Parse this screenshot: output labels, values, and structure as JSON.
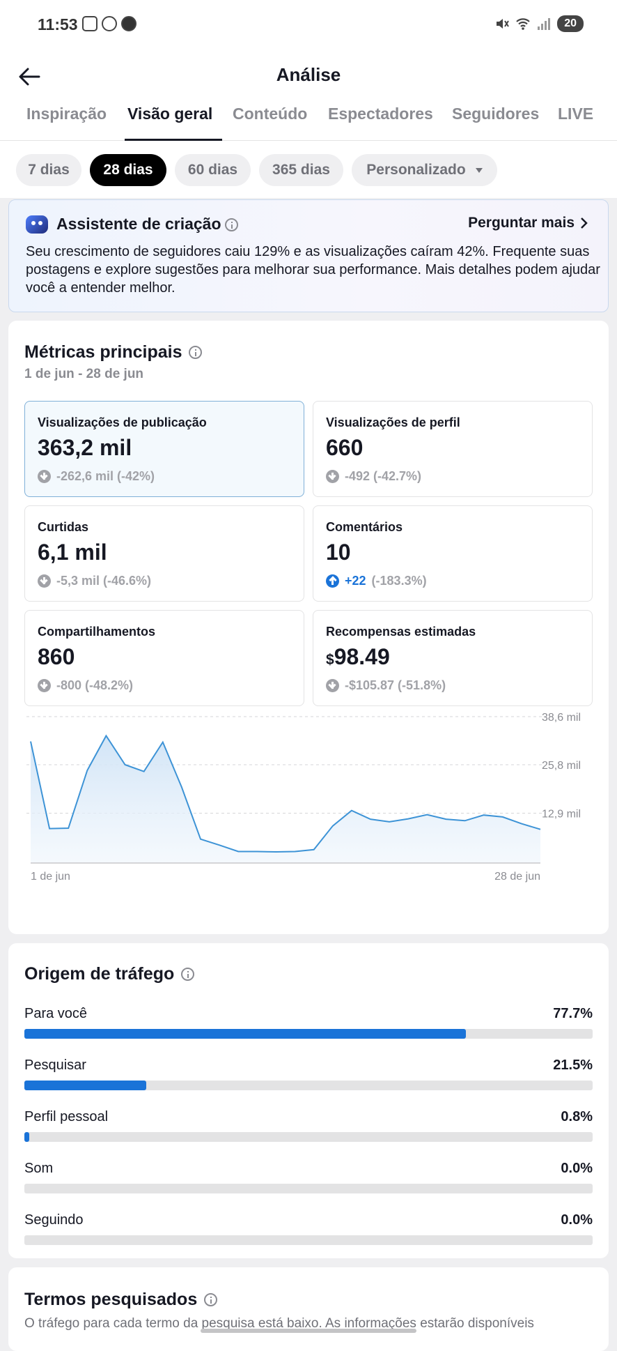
{
  "status_bar": {
    "time": "11:53",
    "battery": "20"
  },
  "header": {
    "title": "Análise"
  },
  "tabs": [
    {
      "label": "Inspiração"
    },
    {
      "label": "Visão geral"
    },
    {
      "label": "Conteúdo"
    },
    {
      "label": "Espectadores"
    },
    {
      "label": "Seguidores"
    },
    {
      "label": "LIVE"
    }
  ],
  "active_tab": "Visão geral",
  "ranges": [
    {
      "label": "7 dias"
    },
    {
      "label": "28 dias"
    },
    {
      "label": "60 dias"
    },
    {
      "label": "365 dias"
    },
    {
      "label": "Personalizado"
    }
  ],
  "active_range": "28 dias",
  "assistant": {
    "title": "Assistente de criação",
    "ask_label": "Perguntar mais",
    "text": "Seu crescimento de seguidores caiu 129% e as visualizações caíram 42%. Frequente suas postagens e explore sugestões para melhorar sua performance. Mais detalhes podem ajudar você a entender melhor."
  },
  "metrics": {
    "title": "Métricas principais",
    "date_range": "1 de jun - 28 de jun",
    "items": [
      {
        "label": "Visualizações de publicação",
        "value": "363,2 mil",
        "delta": "-262,6 mil (-42%)",
        "delta_extra": "",
        "direction": "down"
      },
      {
        "label": "Visualizações de perfil",
        "value": "660",
        "delta": "-492 (-42.7%)",
        "delta_extra": "",
        "direction": "down"
      },
      {
        "label": "Curtidas",
        "value": "6,1 mil",
        "delta": "-5,3 mil (-46.6%)",
        "delta_extra": "",
        "direction": "down"
      },
      {
        "label": "Comentários",
        "value": "10",
        "delta": "+22",
        "delta_extra": "(-183.3%)",
        "direction": "up"
      },
      {
        "label": "Compartilhamentos",
        "value": "860",
        "delta": "-800 (-48.2%)",
        "delta_extra": "",
        "direction": "down"
      },
      {
        "label": "Recompensas estimadas",
        "value_currency": "$",
        "value": "98.49",
        "delta": "-$105.87 (-51.8%)",
        "delta_extra": "",
        "direction": "down"
      }
    ]
  },
  "chart_data": {
    "type": "area",
    "x_start_label": "1 de jun",
    "x_end_label": "28 de jun",
    "y_tick_labels": [
      "38,6 mil",
      "25,8 mil",
      "12,9 mil"
    ],
    "y_ticks": [
      38.6,
      25.8,
      12.9
    ],
    "ylim": [
      0,
      38.6
    ],
    "y_unit": "mil",
    "values": [
      32.0,
      8.8,
      8.9,
      24.3,
      33.5,
      25.8,
      24.0,
      31.8,
      19.8,
      6.0,
      4.4,
      2.7,
      2.7,
      2.6,
      2.7,
      3.2,
      9.5,
      13.6,
      11.3,
      10.6,
      11.4,
      12.5,
      11.3,
      10.9,
      12.4,
      11.9,
      10.1,
      8.6
    ],
    "color": "#3d93d6",
    "grid": "dashed horizontal"
  },
  "traffic": {
    "title": "Origem de tráfego",
    "items": [
      {
        "label": "Para você",
        "pct_label": "77.7%",
        "pct": 77.7
      },
      {
        "label": "Pesquisar",
        "pct_label": "21.5%",
        "pct": 21.5
      },
      {
        "label": "Perfil pessoal",
        "pct_label": "0.8%",
        "pct": 0.8
      },
      {
        "label": "Som",
        "pct_label": "0.0%",
        "pct": 0.0
      },
      {
        "label": "Seguindo",
        "pct_label": "0.0%",
        "pct": 0.0
      }
    ]
  },
  "terms": {
    "title": "Termos pesquisados",
    "note": "O tráfego para cada termo da pesquisa está baixo. As informações estarão disponíveis"
  },
  "colors": {
    "accent": "#1a73d8",
    "chart_line": "#3d93d6"
  }
}
